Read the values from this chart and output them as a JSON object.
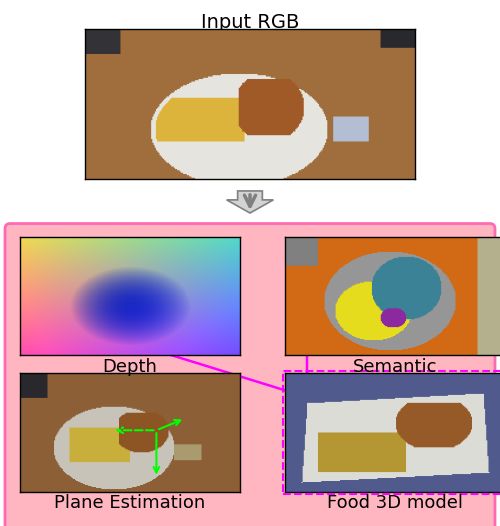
{
  "title": "Input RGB",
  "title_fontsize": 14,
  "label_depth": "Depth",
  "label_semantic": "Semantic",
  "label_plane": "Plane Estimation",
  "label_3d": "Food 3D model",
  "label_fontsize": 13,
  "bg_color": "#FFB6C1",
  "border_pink": "#FF69B4",
  "border_dashed_color": "#FF00FF",
  "fig_width": 5.0,
  "fig_height": 5.26,
  "top_panel_bg": "#FFFFFF",
  "bottom_panel_bg": "#FFB6C1"
}
